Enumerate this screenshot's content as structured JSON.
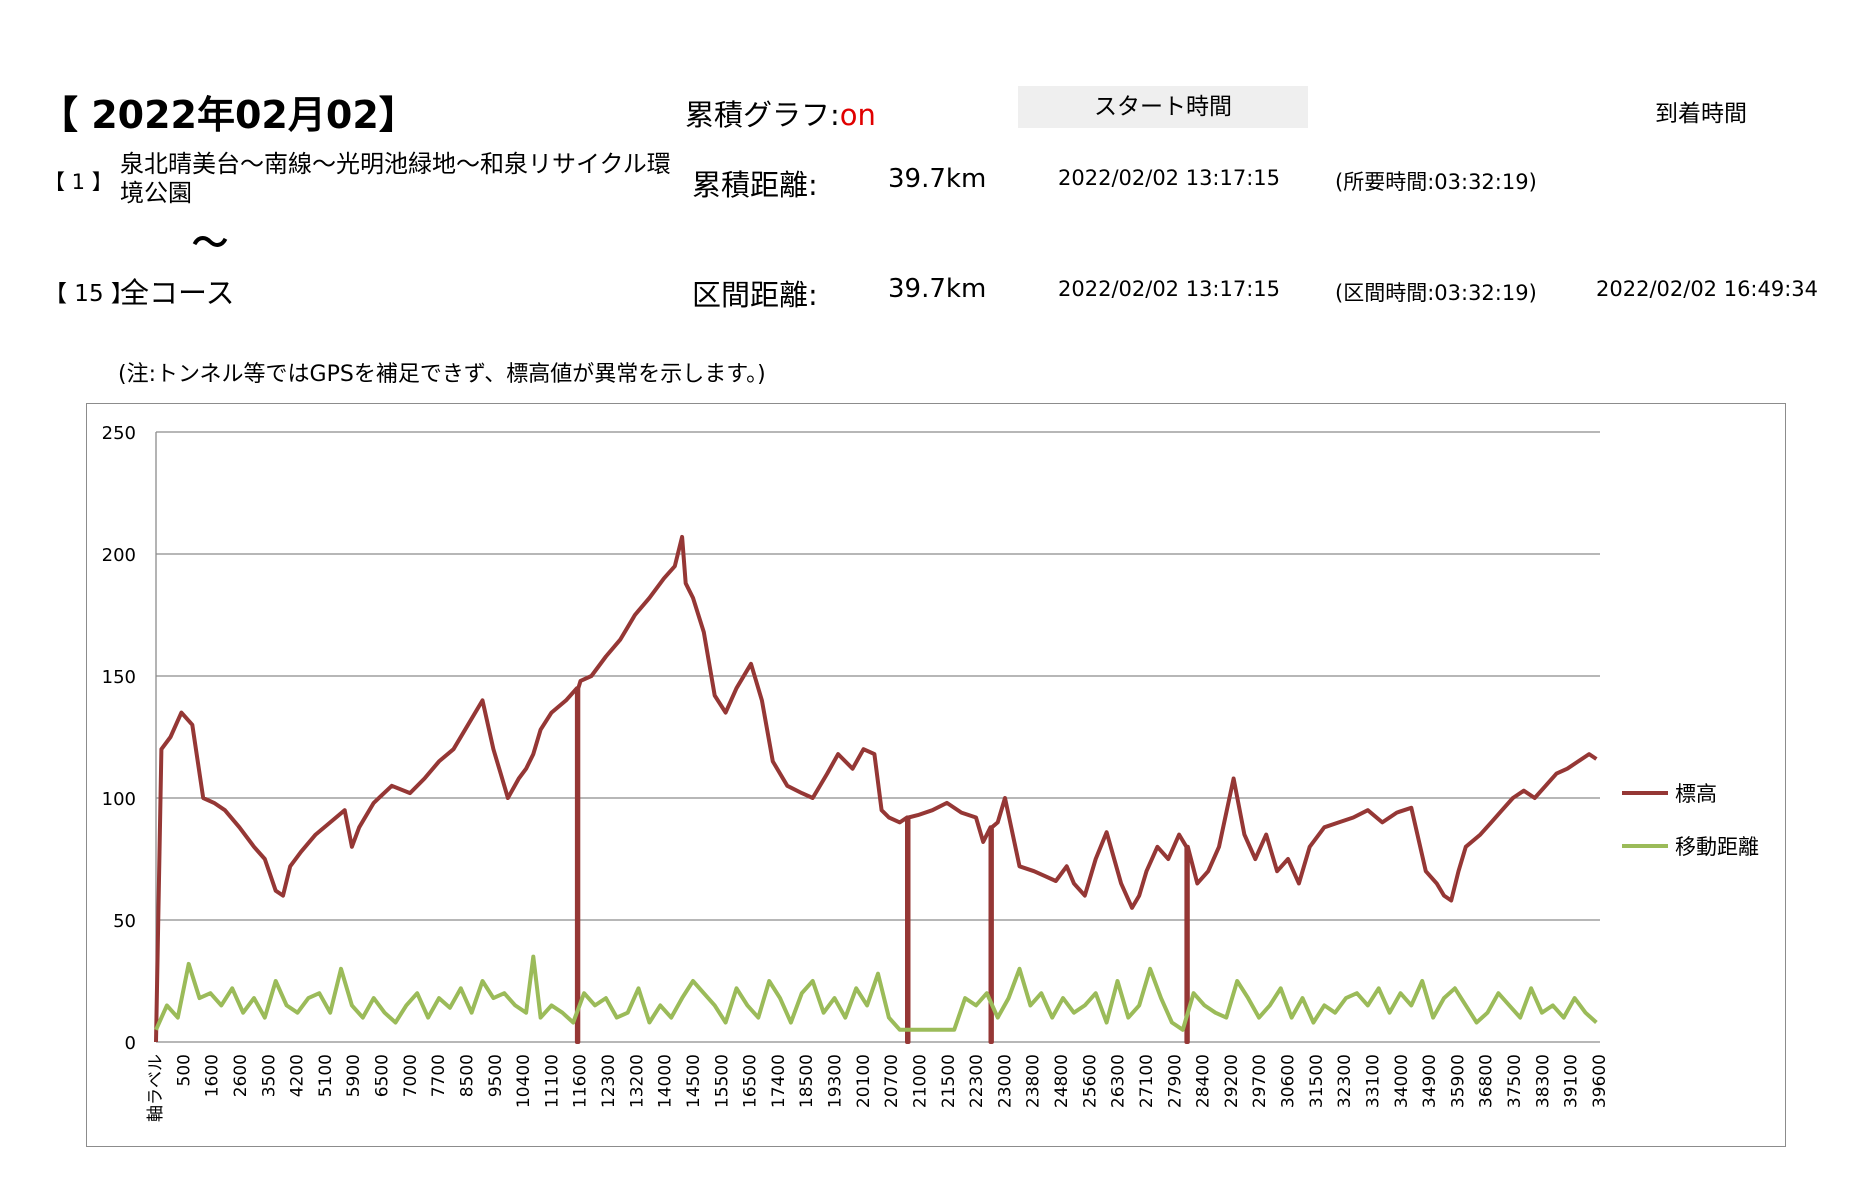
{
  "header": {
    "date_title": "【 2022年02月02】",
    "cumulative_graph_label": "累積グラフ:",
    "cumulative_graph_value": "on",
    "start_time_label": "スタート時間",
    "arrival_time_label": "到着時間"
  },
  "route": {
    "start_index": "【 1 】",
    "start_name": "泉北晴美台～南線～光明池緑地～和泉リサイクル環境公園",
    "separator": "～",
    "end_index": "【 15 】",
    "end_name": "全コース"
  },
  "summary": {
    "cumulative_distance_label": "累積距離:",
    "cumulative_distance_value": "39.7km",
    "cumulative_start_time": "2022/02/02 13:17:15",
    "elapsed_time": "(所要時間:03:32:19)",
    "section_distance_label": "区間距離:",
    "section_distance_value": "39.7km",
    "section_start_time": "2022/02/02 13:17:15",
    "section_time": "(区間時間:03:32:19)",
    "arrival_time": "2022/02/02 16:49:34"
  },
  "note": "(注:トンネル等ではGPSを補足できず、標高値が異常を示します。)",
  "chart_data": {
    "type": "line",
    "ylim": [
      0,
      250
    ],
    "y_ticks": [
      "0",
      "50",
      "100",
      "150",
      "200",
      "250"
    ],
    "x_tick_labels": [
      "軸ラベル",
      "500",
      "1600",
      "2600",
      "3500",
      "4200",
      "5100",
      "5900",
      "6500",
      "7000",
      "7700",
      "8500",
      "9500",
      "10400",
      "11100",
      "11600",
      "12300",
      "13200",
      "14000",
      "14500",
      "15500",
      "16500",
      "17400",
      "18500",
      "19300",
      "20100",
      "20700",
      "21000",
      "21500",
      "22300",
      "23000",
      "23800",
      "24800",
      "25600",
      "26300",
      "27100",
      "27900",
      "28400",
      "29200",
      "29700",
      "30600",
      "31500",
      "32300",
      "33100",
      "34000",
      "34900",
      "35900",
      "36800",
      "37500",
      "38300",
      "39100",
      "39600"
    ],
    "x_range": [
      0,
      39800
    ],
    "legend_position": "right",
    "colors": {
      "elevation": "#953735",
      "distance": "#9bbb59"
    },
    "series": [
      {
        "name": "標高",
        "x": [
          0,
          150,
          400,
          700,
          1000,
          1300,
          1600,
          1900,
          2300,
          2700,
          3000,
          3300,
          3500,
          3700,
          4000,
          4400,
          4800,
          5200,
          5400,
          5600,
          6000,
          6500,
          7000,
          7400,
          7800,
          8200,
          8600,
          9000,
          9300,
          9500,
          9700,
          10000,
          10200,
          10400,
          10600,
          10900,
          11300,
          11600,
          11700,
          12000,
          12400,
          12800,
          13200,
          13600,
          14000,
          14300,
          14500,
          14600,
          14800,
          15100,
          15400,
          15700,
          16000,
          16400,
          16700,
          17000,
          17400,
          17800,
          18100,
          18500,
          18800,
          19200,
          19500,
          19800,
          20000,
          20200,
          20500,
          20700,
          21000,
          21400,
          21800,
          22200,
          22600,
          22800,
          23000,
          23200,
          23400,
          23800,
          24200,
          24500,
          24800,
          25100,
          25300,
          25600,
          25900,
          26200,
          26600,
          26900,
          27100,
          27300,
          27600,
          27900,
          28200,
          28400,
          28700,
          29000,
          29300,
          29700,
          30000,
          30300,
          30600,
          30900,
          31200,
          31500,
          31800,
          32200,
          32600,
          33000,
          33400,
          33800,
          34200,
          34600,
          35000,
          35300,
          35500,
          35700,
          35900,
          36100,
          36500,
          36800,
          37100,
          37400,
          37700,
          38000,
          38300,
          38600,
          38900,
          39200,
          39500,
          39700
        ],
        "y": [
          0,
          120,
          125,
          135,
          130,
          100,
          98,
          95,
          88,
          80,
          75,
          62,
          60,
          72,
          78,
          85,
          90,
          95,
          80,
          88,
          98,
          105,
          102,
          108,
          115,
          120,
          130,
          140,
          120,
          110,
          100,
          108,
          112,
          118,
          128,
          135,
          140,
          145,
          148,
          150,
          158,
          165,
          175,
          182,
          190,
          195,
          207,
          188,
          182,
          168,
          142,
          135,
          145,
          155,
          140,
          115,
          105,
          102,
          100,
          110,
          118,
          112,
          120,
          118,
          95,
          92,
          90,
          92,
          93,
          95,
          98,
          94,
          92,
          82,
          88,
          90,
          100,
          72,
          70,
          68,
          66,
          72,
          65,
          60,
          75,
          86,
          65,
          55,
          60,
          70,
          80,
          75,
          85,
          80,
          65,
          70,
          80,
          108,
          85,
          75,
          85,
          70,
          75,
          65,
          80,
          88,
          90,
          92,
          95,
          90,
          94,
          96,
          70,
          65,
          60,
          58,
          70,
          80,
          85,
          90,
          95,
          100,
          103,
          100,
          105,
          110,
          112,
          115,
          118,
          116
        ],
        "dips_x": [
          11600,
          20700,
          23000,
          28400
        ],
        "dips_y": 0
      },
      {
        "name": "移動距離",
        "x": [
          0,
          300,
          600,
          900,
          1200,
          1500,
          1800,
          2100,
          2400,
          2700,
          3000,
          3300,
          3600,
          3900,
          4200,
          4500,
          4800,
          5100,
          5400,
          5700,
          6000,
          6300,
          6600,
          6900,
          7200,
          7500,
          7800,
          8100,
          8400,
          8700,
          9000,
          9300,
          9600,
          9900,
          10200,
          10400,
          10600,
          10900,
          11200,
          11500,
          11800,
          12100,
          12400,
          12700,
          13000,
          13300,
          13600,
          13900,
          14200,
          14500,
          14800,
          15100,
          15400,
          15700,
          16000,
          16300,
          16600,
          16900,
          17200,
          17500,
          17800,
          18100,
          18400,
          18700,
          19000,
          19300,
          19600,
          19900,
          20200,
          20500,
          20800,
          21100,
          21400,
          21700,
          22000,
          22300,
          22600,
          22900,
          23200,
          23500,
          23800,
          24100,
          24400,
          24700,
          25000,
          25300,
          25600,
          25900,
          26200,
          26500,
          26800,
          27100,
          27400,
          27700,
          28000,
          28300,
          28600,
          28900,
          29200,
          29500,
          29800,
          30100,
          30400,
          30700,
          31000,
          31300,
          31600,
          31900,
          32200,
          32500,
          32800,
          33100,
          33400,
          33700,
          34000,
          34300,
          34600,
          34900,
          35200,
          35500,
          35800,
          36100,
          36400,
          36700,
          37000,
          37300,
          37600,
          37900,
          38200,
          38500,
          38800,
          39100,
          39400,
          39700
        ],
        "y": [
          5,
          15,
          10,
          32,
          18,
          20,
          15,
          22,
          12,
          18,
          10,
          25,
          15,
          12,
          18,
          20,
          12,
          30,
          15,
          10,
          18,
          12,
          8,
          15,
          20,
          10,
          18,
          14,
          22,
          12,
          25,
          18,
          20,
          15,
          12,
          35,
          10,
          15,
          12,
          8,
          20,
          15,
          18,
          10,
          12,
          22,
          8,
          15,
          10,
          18,
          25,
          20,
          15,
          8,
          22,
          15,
          10,
          25,
          18,
          8,
          20,
          25,
          12,
          18,
          10,
          22,
          15,
          28,
          10,
          5,
          5,
          5,
          5,
          5,
          5,
          18,
          15,
          20,
          10,
          18,
          30,
          15,
          20,
          10,
          18,
          12,
          15,
          20,
          8,
          25,
          10,
          15,
          30,
          18,
          8,
          5,
          20,
          15,
          12,
          10,
          25,
          18,
          10,
          15,
          22,
          10,
          18,
          8,
          15,
          12,
          18,
          20,
          15,
          22,
          12,
          20,
          15,
          25,
          10,
          18,
          22,
          15,
          8,
          12,
          20,
          15,
          10,
          22,
          12,
          15,
          10,
          18,
          12,
          8
        ]
      }
    ]
  }
}
